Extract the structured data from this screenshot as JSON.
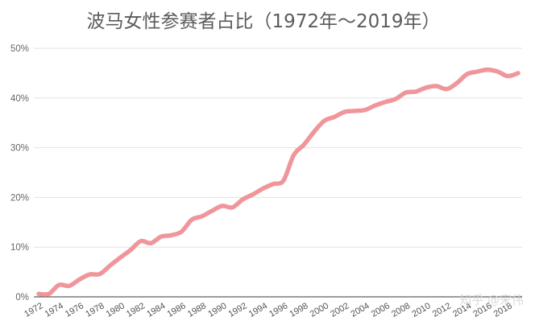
{
  "chart_data": {
    "type": "line",
    "title": "波马女性参赛者占比（1972年～2019年）",
    "x": [
      1972,
      1973,
      1974,
      1975,
      1976,
      1977,
      1978,
      1979,
      1980,
      1981,
      1982,
      1983,
      1984,
      1985,
      1986,
      1987,
      1988,
      1989,
      1990,
      1991,
      1992,
      1993,
      1994,
      1995,
      1996,
      1997,
      1998,
      1999,
      2000,
      2001,
      2002,
      2003,
      2004,
      2005,
      2006,
      2007,
      2008,
      2009,
      2010,
      2011,
      2012,
      2013,
      2014,
      2015,
      2016,
      2017,
      2018,
      2019
    ],
    "y": [
      0.6,
      0.6,
      2.4,
      2.2,
      3.5,
      4.5,
      4.6,
      6.3,
      7.9,
      9.4,
      11.2,
      10.8,
      12.1,
      12.4,
      13.1,
      15.5,
      16.2,
      17.3,
      18.3,
      18.0,
      19.6,
      20.6,
      21.8,
      22.7,
      23.4,
      28.5,
      30.6,
      33.2,
      35.4,
      36.2,
      37.2,
      37.4,
      37.6,
      38.5,
      39.2,
      39.8,
      41.1,
      41.3,
      42.1,
      42.4,
      41.8,
      43.0,
      44.8,
      45.3,
      45.7,
      45.3,
      44.4,
      45.0
    ],
    "x_tick_labels": [
      "1972",
      "1974",
      "1976",
      "1978",
      "1980",
      "1982",
      "1984",
      "1986",
      "1988",
      "1990",
      "1992",
      "1994",
      "1996",
      "1998",
      "2000",
      "2002",
      "2004",
      "2006",
      "2008",
      "2010",
      "2012",
      "2014",
      "2016",
      "2018"
    ],
    "y_ticks": [
      0,
      10,
      20,
      30,
      40,
      50
    ],
    "y_tick_labels": [
      "0%",
      "10%",
      "20%",
      "30%",
      "40%",
      "50%"
    ],
    "xlim": [
      1972,
      2019
    ],
    "ylim": [
      0,
      50
    ],
    "grid": "horizontal",
    "legend": "none",
    "color": "#f0969b"
  },
  "watermark": "知乎 @宋伟"
}
